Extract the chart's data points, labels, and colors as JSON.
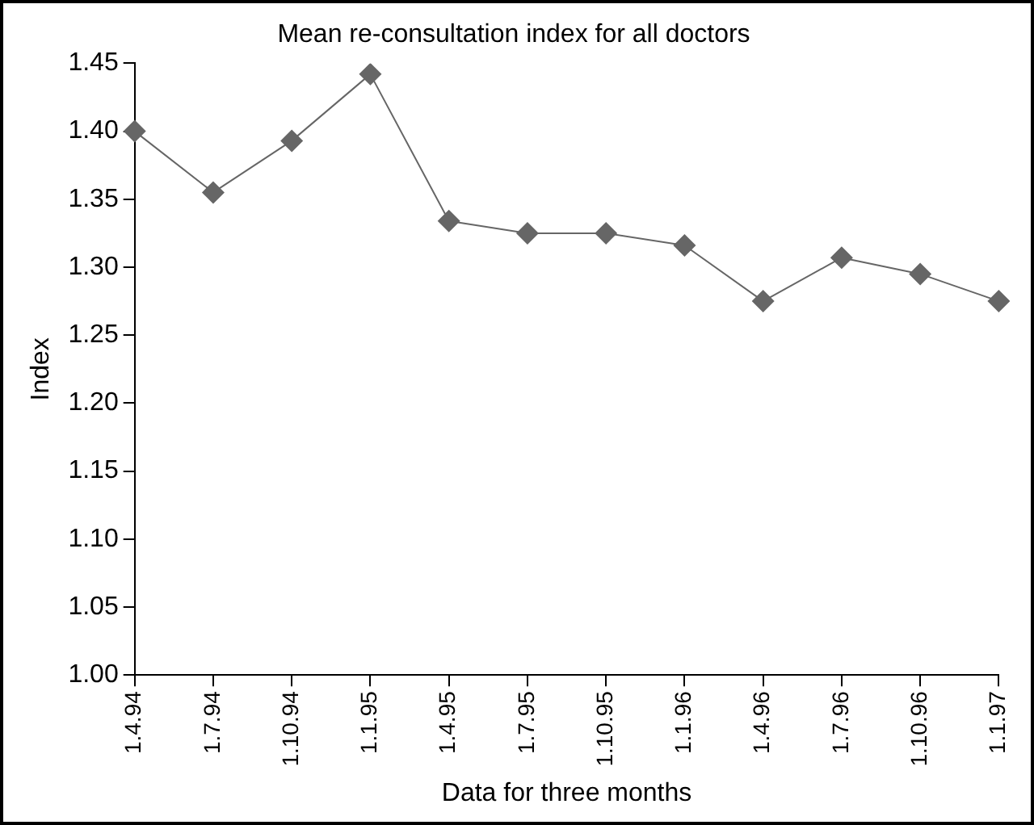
{
  "chart_data": {
    "type": "line",
    "title": "Mean re-consultation index for all doctors",
    "xlabel": "Data for three months",
    "ylabel": "Index",
    "categories": [
      "1.4.94",
      "1.7.94",
      "1.10.94",
      "1.1.95",
      "1.4.95",
      "1.7.95",
      "1.10.95",
      "1.1.96",
      "1.4.96",
      "1.7.96",
      "1.10.96",
      "1.1.97"
    ],
    "series": [
      {
        "color": "#666666",
        "values": [
          1.4,
          1.355,
          1.393,
          1.442,
          1.334,
          1.325,
          1.325,
          1.316,
          1.275,
          1.307,
          1.295,
          1.275
        ]
      }
    ],
    "ylim": [
      1.0,
      1.45
    ],
    "yticks": [
      {
        "value": 1,
        "label": "1.00"
      },
      {
        "value": 1.05,
        "label": "1.05"
      },
      {
        "value": 1.1,
        "label": "1.10"
      },
      {
        "value": 1.15,
        "label": "1.15"
      },
      {
        "value": 1.2,
        "label": "1.20"
      },
      {
        "value": 1.25,
        "label": "1.25"
      },
      {
        "value": 1.3,
        "label": "1.30"
      },
      {
        "value": 1.35,
        "label": "1.35"
      },
      {
        "value": 1.4,
        "label": "1.40"
      },
      {
        "value": 1.45,
        "label": "1.45"
      }
    ],
    "grid": false,
    "legend": false,
    "marker": "diamond",
    "line_style": "solid"
  }
}
